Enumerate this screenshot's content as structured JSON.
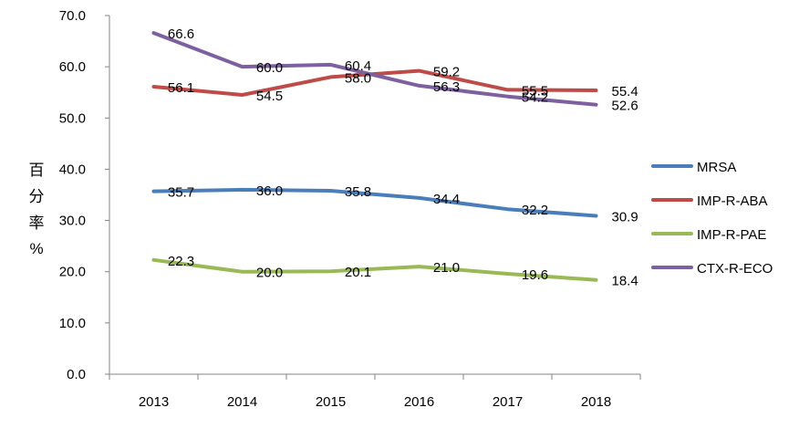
{
  "chart_data": {
    "type": "line",
    "title": "",
    "xlabel": "",
    "ylabel": [
      "百",
      "分",
      "率",
      "%"
    ],
    "categories": [
      "2013",
      "2014",
      "2015",
      "2016",
      "2017",
      "2018"
    ],
    "ylim": [
      0,
      70
    ],
    "y_ticks": [
      "0.0",
      "10.0",
      "20.0",
      "30.0",
      "40.0",
      "50.0",
      "60.0",
      "70.0"
    ],
    "grid": false,
    "legend_position": "right",
    "series": [
      {
        "name": "MRSA",
        "color": "#4a7ebb",
        "values": [
          35.7,
          36.0,
          35.8,
          34.4,
          32.2,
          30.9
        ],
        "labels": [
          "35.7",
          "36.0",
          "35.8",
          "34.4",
          "32.2",
          "30.9"
        ]
      },
      {
        "name": "IMP-R-ABA",
        "color": "#be4b48",
        "values": [
          56.1,
          54.5,
          58.0,
          59.2,
          55.5,
          55.4
        ],
        "labels": [
          "56.1",
          "54.5",
          "58.0",
          "59.2",
          "55.5",
          "55.4"
        ]
      },
      {
        "name": "IMP-R-PAE",
        "color": "#98b954",
        "values": [
          22.3,
          20.0,
          20.1,
          21.0,
          19.6,
          18.4
        ],
        "labels": [
          "22.3",
          "20.0",
          "20.1",
          "21.0",
          "19.6",
          "18.4"
        ]
      },
      {
        "name": "CTX-R-ECO",
        "color": "#7d60a0",
        "values": [
          66.6,
          60.0,
          60.4,
          56.3,
          54.2,
          52.6
        ],
        "labels": [
          "66.6",
          "60.0",
          "60.4",
          "56.3",
          "54.2",
          "52.6"
        ]
      }
    ]
  }
}
